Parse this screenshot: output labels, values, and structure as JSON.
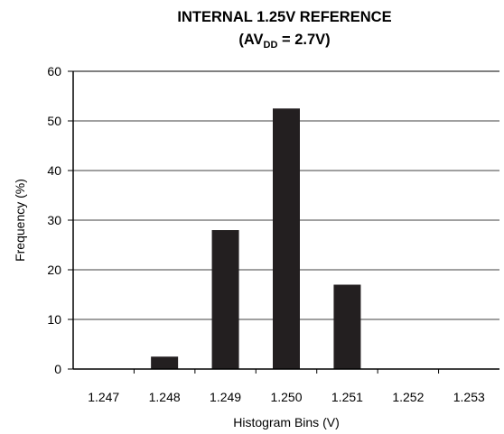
{
  "title": {
    "line1": "INTERNAL 1.25V REFERENCE",
    "line2_prefix": "(AV",
    "line2_sub": "DD",
    "line2_suffix": " = 2.7V)"
  },
  "colors": {
    "bar": "#231f20",
    "axis": "#000000",
    "grid": "#000000"
  },
  "chart_data": {
    "type": "bar",
    "categories": [
      "1.247",
      "1.248",
      "1.249",
      "1.250",
      "1.251",
      "1.252",
      "1.253"
    ],
    "values": [
      0,
      2.5,
      28,
      52.5,
      17,
      0,
      0
    ],
    "xlabel": "Histogram Bins (V)",
    "ylabel": "Frequency (%)",
    "ylim": [
      0,
      60
    ],
    "yticks": [
      0,
      10,
      20,
      30,
      40,
      50,
      60
    ],
    "grid": true
  }
}
